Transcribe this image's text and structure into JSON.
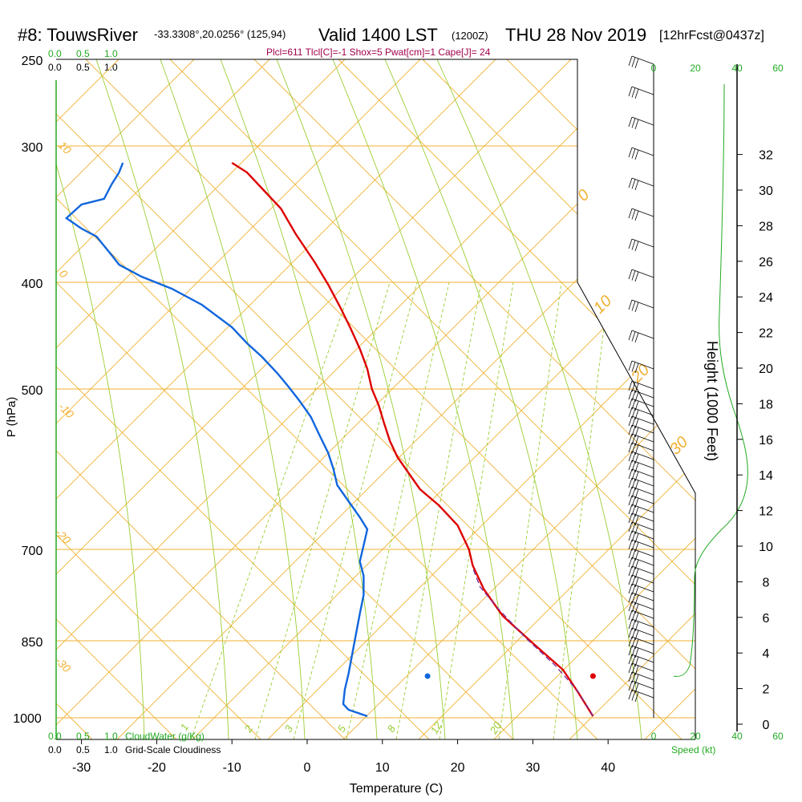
{
  "title": {
    "station": "#8: TouwsRiver",
    "coords": "-33.3308°,20.0256° (125,94)",
    "valid": "Valid 1400 LST",
    "utc": "(1200Z)",
    "date": "THU 28 Nov 2019",
    "forecast": "[12hrFcst@0437z]"
  },
  "indices_line": "Plcl=611 Tlcl[C]=-1 Shox=5 Pwat[cm]=1 Cape[J]= 24",
  "scales": {
    "cloudwater_ticks": [
      "0.0",
      "0.5",
      "1.0"
    ],
    "cloudiness_ticks": [
      "0.0",
      "0.5",
      "1.0"
    ],
    "cloudwater_label": "CloudWater (g/Kg)",
    "cloudiness_label": "Grid-Scale Cloudiness",
    "speed_ticks": [
      "0",
      "20",
      "40",
      "60"
    ],
    "speed_label": "Speed (kt)"
  },
  "chart_data": {
    "type": "line",
    "xlabel": "Temperature (C)",
    "ylabel": "P (hPa)",
    "y2label": "Height (1000 Feet)",
    "x_ticks": [
      -30,
      -20,
      -10,
      0,
      10,
      20,
      30,
      40
    ],
    "pressure_ticks": [
      250,
      300,
      400,
      500,
      700,
      850,
      1000
    ],
    "height_ticks": [
      0,
      2,
      4,
      6,
      8,
      10,
      12,
      14,
      16,
      18,
      20,
      22,
      24,
      26,
      28,
      30,
      32
    ],
    "isotherm_labels": [
      "10",
      "0",
      "-10",
      "-20",
      "-30",
      "0",
      "10",
      "20",
      "30"
    ],
    "mixing_ratio_labels": [
      "1",
      "2",
      "3",
      "5",
      "8",
      "12",
      "20"
    ],
    "series": [
      {
        "color": "#dd0000",
        "points": [
          [
            38,
            893
          ],
          [
            36,
            863
          ],
          [
            34,
            835
          ],
          [
            30,
            802
          ],
          [
            26,
            768
          ],
          [
            23.5,
            735
          ],
          [
            22,
            705
          ],
          [
            21.5,
            685
          ],
          [
            20,
            655
          ],
          [
            17.5,
            630
          ],
          [
            15,
            610
          ],
          [
            13.5,
            590
          ],
          [
            12,
            570
          ],
          [
            11,
            550
          ],
          [
            10.2,
            527
          ],
          [
            9.5,
            505
          ],
          [
            8.6,
            485
          ],
          [
            8,
            460
          ],
          [
            7,
            435
          ],
          [
            5.8,
            410
          ],
          [
            4.5,
            385
          ],
          [
            2.8,
            355
          ],
          [
            1,
            327
          ],
          [
            -1.5,
            292
          ],
          [
            -3.5,
            260
          ],
          [
            -5.8,
            237
          ],
          [
            -8,
            215
          ],
          [
            -10,
            203
          ]
        ]
      },
      {
        "color": "#1166dd",
        "points": [
          [
            8,
            893
          ],
          [
            5.5,
            885
          ],
          [
            4.8,
            878
          ],
          [
            5,
            860
          ],
          [
            5.5,
            840
          ],
          [
            6,
            815
          ],
          [
            6.5,
            790
          ],
          [
            7,
            765
          ],
          [
            7.5,
            742
          ],
          [
            7.5,
            718
          ],
          [
            7,
            700
          ],
          [
            7.5,
            680
          ],
          [
            8,
            660
          ],
          [
            7,
            645
          ],
          [
            5.5,
            625
          ],
          [
            4,
            605
          ],
          [
            3.5,
            585
          ],
          [
            2.8,
            565
          ],
          [
            1.5,
            540
          ],
          [
            0.5,
            520
          ],
          [
            -1,
            500
          ],
          [
            -2.5,
            482
          ],
          [
            -4,
            465
          ],
          [
            -6,
            445
          ],
          [
            -8,
            428
          ],
          [
            -10,
            408
          ],
          [
            -14,
            380
          ],
          [
            -18,
            360
          ],
          [
            -22,
            345
          ],
          [
            -25,
            330
          ],
          [
            -26,
            318
          ],
          [
            -28,
            295
          ],
          [
            -30,
            285
          ],
          [
            -32,
            272
          ],
          [
            -30,
            255
          ],
          [
            -27,
            248
          ],
          [
            -26,
            230
          ],
          [
            -25,
            215
          ],
          [
            -24.5,
            203
          ]
        ]
      },
      {
        "color": "#7b2fa0",
        "dashed": true,
        "points": [
          [
            38,
            893
          ],
          [
            36,
            862
          ],
          [
            33,
            830
          ],
          [
            29,
            795
          ],
          [
            25.5,
            760
          ],
          [
            23,
            732
          ],
          [
            22,
            708
          ]
        ]
      }
    ],
    "surface_points": [
      {
        "temperature": 38,
        "pressure": 1000,
        "color": "#dd0000"
      },
      {
        "temperature": 16,
        "pressure": 1000,
        "color": "#1166dd"
      }
    ]
  }
}
